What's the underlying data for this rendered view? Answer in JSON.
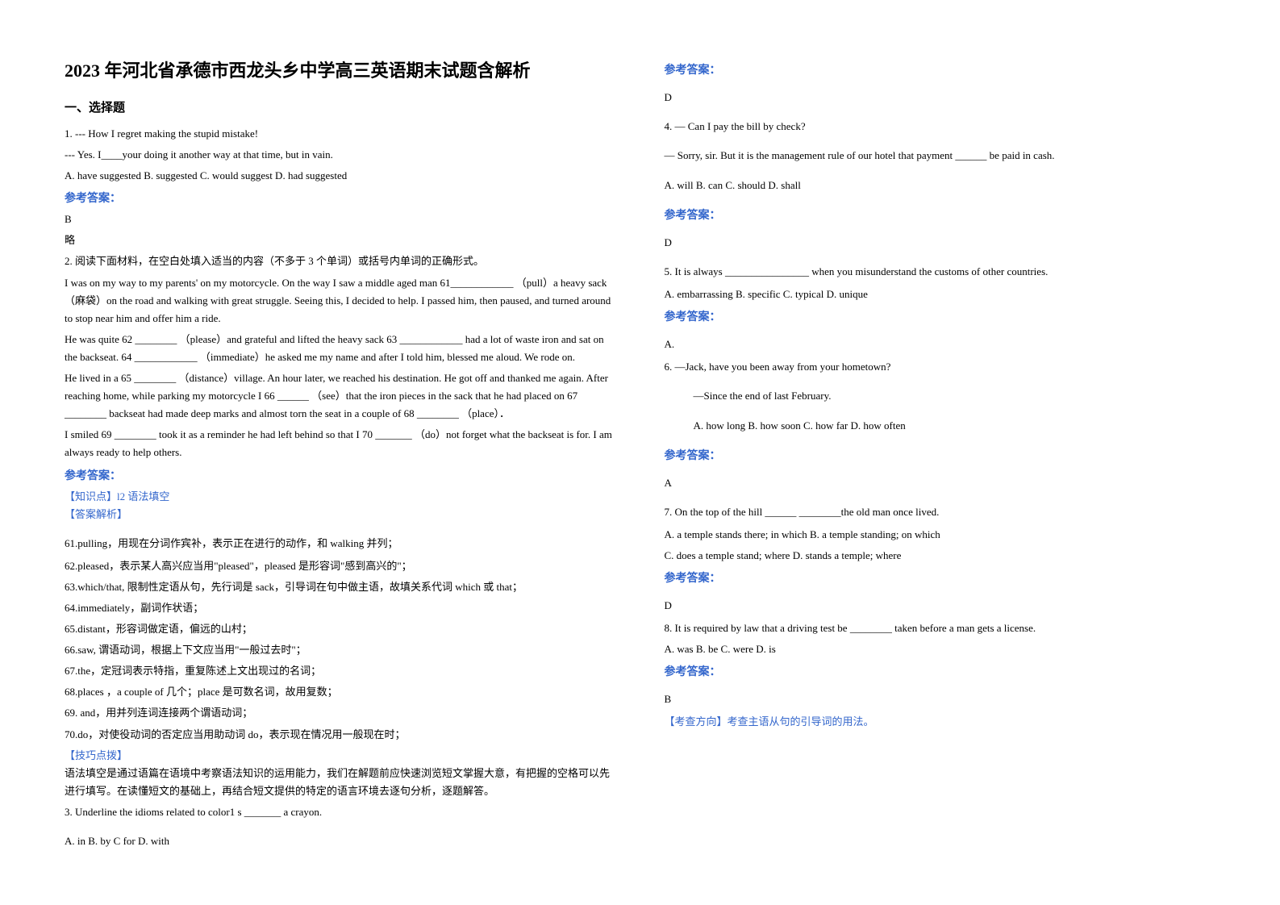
{
  "title": "2023 年河北省承德市西龙头乡中学高三英语期末试题含解析",
  "section1": "一、选择题",
  "left": {
    "q1_l1": "1. --- How I regret making the stupid mistake!",
    "q1_l2": " --- Yes. I____your doing it another way at that time, but in vain.",
    "q1_l3": "  A.  have suggested   B. suggested    C. would suggest     D. had suggested",
    "ans_label": "参考答案：",
    "q1_ans": "B",
    "q1_note": "略",
    "q2_head": "2.              阅读下面材料，在空白处填入适当的内容（不多于 3 个单词）或括号内单词的正确形式。",
    "q2_p1": "                             I was on my way to my parents' on my motorcycle. On the way I saw a middle aged man 61____________  （pull）a heavy sack（麻袋）on the road and walking with great struggle. Seeing this, I decided to help. I passed him, then paused, and turned around to stop near him and offer him a ride.",
    "q2_p2": "       He was quite 62 ________ （please）and grateful and lifted the heavy sack 63 ____________ had a lot of waste iron and sat on the backseat. 64 ____________ （immediate）he asked me my name and after I told him, blessed me aloud. We rode on.",
    "q2_p3": "He lived in a 65 ________ （distance）village. An hour later, we reached his destination. He got off and thanked me again. After reaching home, while parking my motorcycle I  66 ______ （see）that the iron pieces in the sack that he had placed on  67 ________ backseat had made deep marks and almost torn the seat in a couple of  68 ________ （place）．",
    "q2_p4": "       I smiled  69 ________ took it as a reminder he had left behind so that I 70 _______ （do）not forget what the backseat is for. I am always ready to help others.",
    "q2_know": "【知识点】l2 语法填空",
    "q2_expl": "【答案解析】",
    "q2_a1": "61.pulling，用现在分词作宾补，表示正在进行的动作，和 walking 并列；",
    "q2_a2": "62.pleased，表示某人高兴应当用\"pleased\"，pleased 是形容词\"感到高兴的\"；",
    "q2_a3": "63.which/that, 限制性定语从句，先行词是 sack，引导词在句中做主语，故填关系代词 which 或 that；",
    "q2_a4": "64.immediately，副词作状语；",
    "q2_a5": "65.distant，形容词做定语，偏远的山村；",
    "q2_a6": "66.saw, 谓语动词，根据上下文应当用\"一般过去时\"；",
    "q2_a7": "67.the，定冠词表示特指，重复陈述上文出现过的名词；",
    "q2_a8": "68.places ，a couple of 几个；place 是可数名词，故用复数；",
    "q2_a9": "69. and，用并列连词连接两个谓语动词；",
    "q2_a10": "70.do，对使役动词的否定应当用助动词 do，表示现在情况用一般现在时；",
    "q2_tip_h": "【技巧点拨】",
    "q2_tip": "    语法填空是通过语篇在语境中考察语法知识的运用能力，我们在解题前应快速浏览短文掌握大意，有把握的空格可以先进行填写。在读懂短文的基础上，再结合短文提供的特定的语言环境去逐句分析，逐题解答。",
    "q3_l1": "3. Underline the idioms related to color1 s _______ a crayon.",
    "q3_l2": "A. in    B. by    C for    D. with"
  },
  "right": {
    "ans_label": "参考答案：",
    "q3_ans": "D",
    "q4_l1": "4. — Can I pay the bill by check?",
    "q4_l2": "— Sorry, sir. But it is the management rule of our hotel that payment ______ be paid in cash.",
    "q4_l3": "A. will     B. can     C. should        D. shall",
    "q4_ans": "D",
    "q5_l1": "5. It is always ________________ when you misunderstand the customs of other countries.",
    "q5_l2": " A. embarrassing   B. specific   C. typical   D. unique",
    "q5_ans": "A.",
    "q6_l1": "6. —Jack,     have you been away from your hometown?",
    "q6_l2": "—Since the end of last February.",
    "q6_l3": "A. how long                  B. how soon                   C. how far                  D. how often",
    "q6_ans": "A",
    "q7_l1": "7.  On the top of the hill ______  ________the old man once lived.",
    "q7_l2": "A. a temple stands there; in which    B. a temple standing; on which",
    "q7_l3": "C. does a temple stand; where     D. stands a temple; where",
    "q7_ans": "D",
    "q8_l1": "8. It is required by law that a driving test be ________ taken before a man gets a license.",
    "q8_l2": "A. was     B. be    C. were   D. is",
    "q8_ans": "B",
    "q8_note": "【考查方向】考查主语从句的引导词的用法。"
  }
}
